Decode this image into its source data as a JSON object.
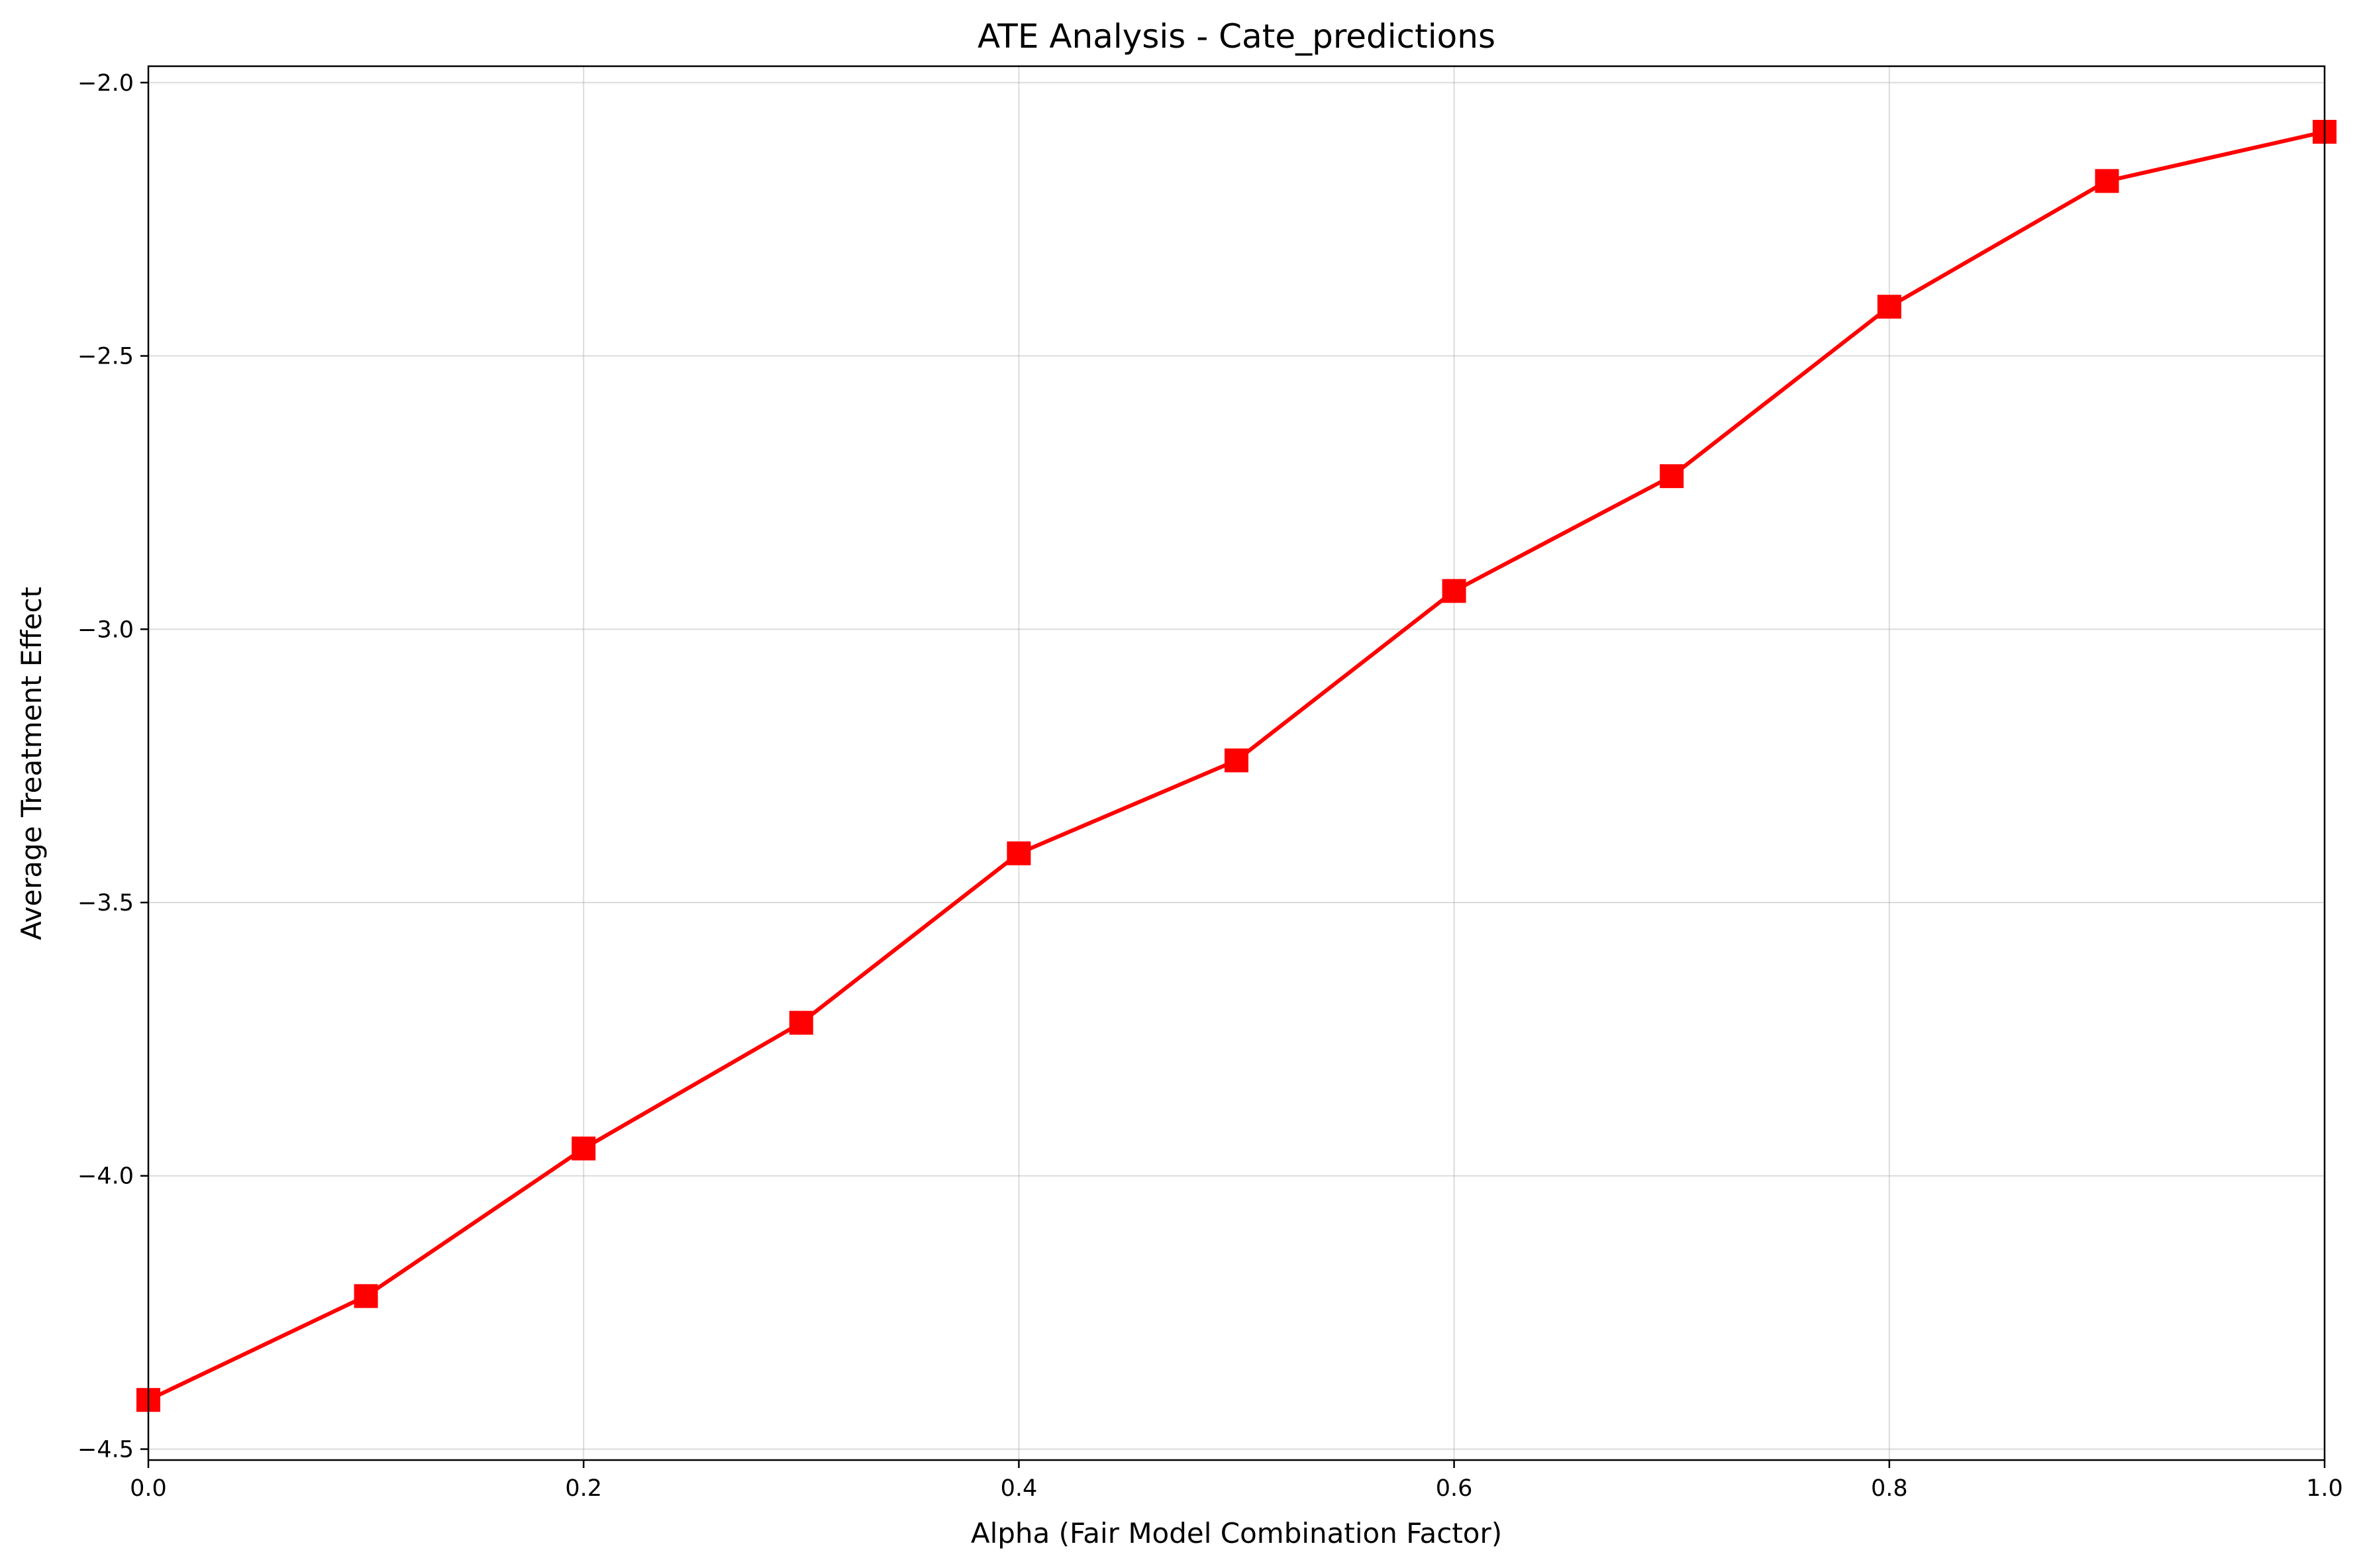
{
  "chart_data": {
    "type": "line",
    "title": "ATE Analysis - Cate_predictions",
    "xlabel": "Alpha (Fair Model Combination Factor)",
    "ylabel": "Average Treatment Effect",
    "xlim": [
      0.0,
      1.0
    ],
    "ylim": [
      -4.52,
      -1.97
    ],
    "xticks": [
      0.0,
      0.2,
      0.4,
      0.6,
      0.8,
      1.0
    ],
    "xtick_labels": [
      "0.0",
      "0.2",
      "0.4",
      "0.6",
      "0.8",
      "1.0"
    ],
    "yticks": [
      -4.5,
      -4.0,
      -3.5,
      -3.0,
      -2.5,
      -2.0
    ],
    "ytick_labels": [
      "−4.5",
      "−4.0",
      "−3.5",
      "−3.0",
      "−2.5",
      "−2.0"
    ],
    "grid": true,
    "series": [
      {
        "color": "#ff0000",
        "marker": "square",
        "x": [
          0.0,
          0.1,
          0.2,
          0.3,
          0.4,
          0.5,
          0.6,
          0.7,
          0.8,
          0.9,
          1.0
        ],
        "y": [
          -4.41,
          -4.22,
          -3.95,
          -3.72,
          -3.41,
          -3.24,
          -2.93,
          -2.72,
          -2.41,
          -2.18,
          -2.09
        ]
      }
    ]
  }
}
